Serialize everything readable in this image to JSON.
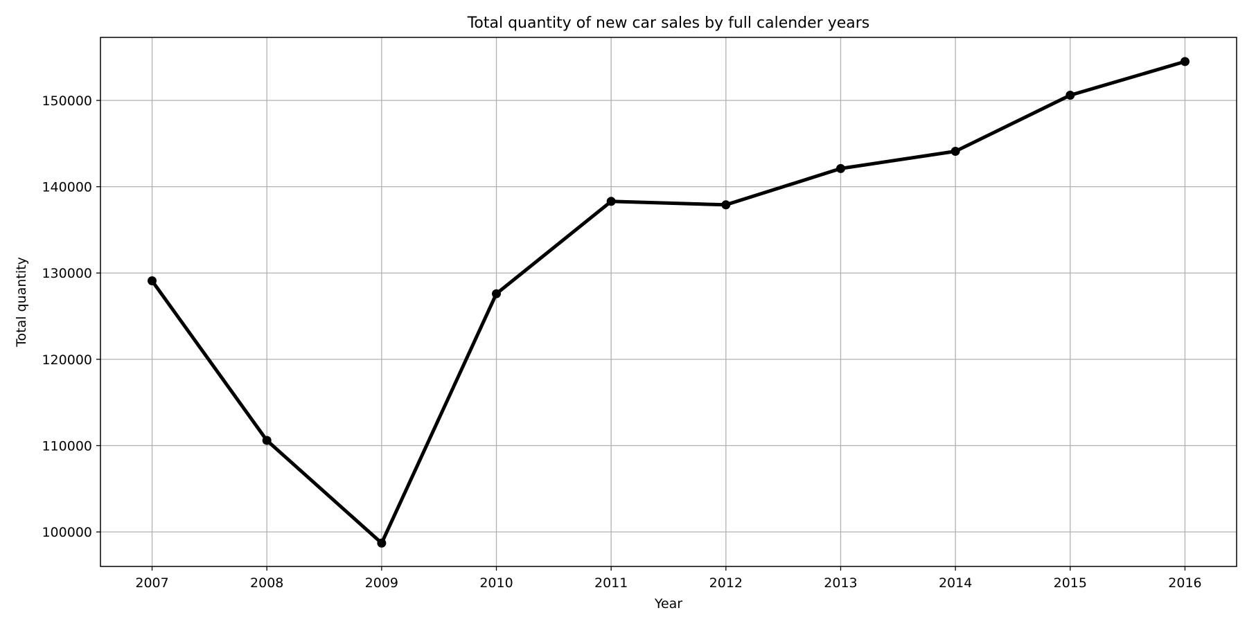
{
  "chart_data": {
    "type": "line",
    "title": "Total quantity of new car sales by full calender years",
    "xlabel": "Year",
    "ylabel": "Total quantity",
    "x": [
      "2007",
      "2008",
      "2009",
      "2010",
      "2011",
      "2012",
      "2013",
      "2014",
      "2015",
      "2016"
    ],
    "series": [
      {
        "values": [
          129100,
          110600,
          98700,
          127600,
          138300,
          137900,
          142100,
          144100,
          150600,
          154500
        ]
      }
    ],
    "yticks": [
      100000,
      110000,
      120000,
      130000,
      140000,
      150000
    ],
    "ytick_labels": [
      "100000",
      "110000",
      "120000",
      "130000",
      "140000",
      "150000"
    ],
    "ylim": [
      96000,
      157300
    ],
    "xlim": [
      2006.55,
      2016.45
    ],
    "grid": true,
    "line_color": "#000000",
    "grid_color": "#b0b0b0",
    "marker": "circle"
  }
}
